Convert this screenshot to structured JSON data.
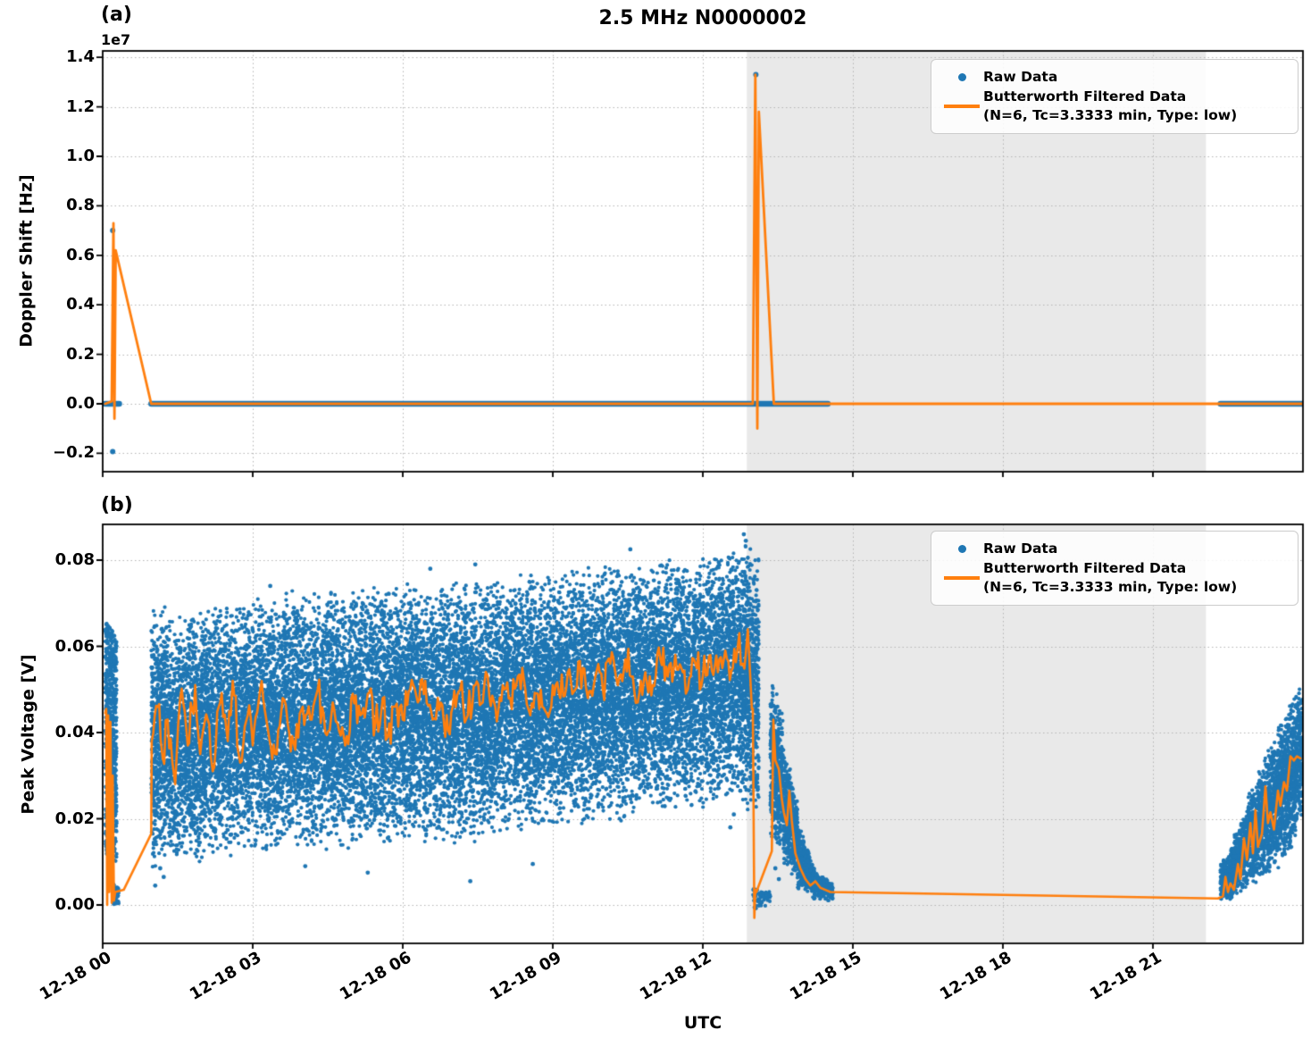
{
  "figure": {
    "title": "2.5 MHz N0000002",
    "xlabel": "UTC",
    "xticks": [
      {
        "h": 0,
        "label": "12-18 00"
      },
      {
        "h": 3,
        "label": "12-18 03"
      },
      {
        "h": 6,
        "label": "12-18 06"
      },
      {
        "h": 9,
        "label": "12-18 09"
      },
      {
        "h": 12,
        "label": "12-18 12"
      },
      {
        "h": 15,
        "label": "12-18 15"
      },
      {
        "h": 18,
        "label": "12-18 18"
      },
      {
        "h": 21,
        "label": "12-18 21"
      }
    ]
  },
  "colors": {
    "raw": "#1f77b4",
    "filtered": "#ff7f0e",
    "shade": "#e9e9e9",
    "grid": "#b5b5b5",
    "spine": "#000000",
    "legend_border": "#cccccc"
  },
  "legend": {
    "raw_label": "Raw Data",
    "filtered_label_line1": "Butterworth Filtered Data",
    "filtered_label_line2": "(N=6, Tc=3.3333 min, Type: low)"
  },
  "chart_data": [
    {
      "type": "scatter+line",
      "panel_label": "(a)",
      "ylabel": "Doppler Shift [Hz]",
      "y_offset_label": "1e7",
      "ylim_e7": [
        -0.274,
        1.426
      ],
      "xlim_hours": [
        0,
        24.0
      ],
      "grid": true,
      "legend_position": "upper right",
      "shaded_region_hours": [
        12.88,
        22.06
      ],
      "yticks": [
        {
          "v": -0.2,
          "label": "−0.2"
        },
        {
          "v": 0.0,
          "label": "0.0"
        },
        {
          "v": 0.2,
          "label": "0.2"
        },
        {
          "v": 0.4,
          "label": "0.4"
        },
        {
          "v": 0.6,
          "label": "0.6"
        },
        {
          "v": 0.8,
          "label": "0.8"
        },
        {
          "v": 1.0,
          "label": "1.0"
        },
        {
          "v": 1.2,
          "label": "1.2"
        },
        {
          "v": 1.4,
          "label": "1.4"
        }
      ],
      "raw_baseline_segments_hours": [
        [
          0.05,
          0.33
        ],
        [
          0.97,
          14.5
        ],
        [
          22.35,
          24.0
        ]
      ],
      "raw_outliers": [
        [
          0.2,
          0.7
        ],
        [
          0.2,
          -0.193
        ],
        [
          13.06,
          1.33
        ]
      ],
      "filtered_line": [
        [
          0.05,
          0.0
        ],
        [
          0.18,
          0.01
        ],
        [
          0.215,
          0.73
        ],
        [
          0.235,
          -0.06
        ],
        [
          0.26,
          0.62
        ],
        [
          0.97,
          0.0
        ],
        [
          13.0,
          0.0
        ],
        [
          13.05,
          1.33
        ],
        [
          13.09,
          -0.1
        ],
        [
          13.12,
          1.18
        ],
        [
          13.42,
          0.0
        ],
        [
          24.0,
          0.0
        ]
      ]
    },
    {
      "type": "scatter+line",
      "panel_label": "(b)",
      "ylabel": "Peak Voltage [V]",
      "ylim": [
        -0.0089,
        0.0881
      ],
      "xlim_hours": [
        0,
        24.0
      ],
      "grid": true,
      "legend_position": "upper right",
      "shaded_region_hours": [
        12.88,
        22.06
      ],
      "yticks": [
        {
          "v": 0.0,
          "label": "0.00"
        },
        {
          "v": 0.02,
          "label": "0.02"
        },
        {
          "v": 0.04,
          "label": "0.04"
        },
        {
          "v": 0.06,
          "label": "0.06"
        },
        {
          "v": 0.08,
          "label": "0.08"
        }
      ],
      "raw_scatter_segments": [
        {
          "t0": 0.05,
          "t1": 0.28,
          "lo0": 0.012,
          "hi0": 0.066,
          "lo1": 0.01,
          "hi1": 0.062,
          "n": 700,
          "dist": "uniform"
        },
        {
          "t0": 0.2,
          "t1": 0.32,
          "lo0": 0.0,
          "hi0": 0.005,
          "lo1": 0.0,
          "hi1": 0.004,
          "n": 55,
          "dist": "uniform"
        },
        {
          "t0": 0.97,
          "t1": 1.3,
          "lo0": 0.006,
          "hi0": 0.07,
          "lo1": 0.01,
          "hi1": 0.072,
          "n": 620,
          "dist": "mid"
        },
        {
          "t0": 1.3,
          "t1": 2.0,
          "lo0": 0.01,
          "hi0": 0.068,
          "lo1": 0.008,
          "hi1": 0.07,
          "n": 1200,
          "dist": "mid"
        },
        {
          "t0": 2.0,
          "t1": 3.0,
          "lo0": 0.01,
          "hi0": 0.07,
          "lo1": 0.012,
          "hi1": 0.071,
          "n": 1700,
          "dist": "mid"
        },
        {
          "t0": 3.0,
          "t1": 4.0,
          "lo0": 0.012,
          "hi0": 0.072,
          "lo1": 0.013,
          "hi1": 0.074,
          "n": 1700,
          "dist": "mid"
        },
        {
          "t0": 4.0,
          "t1": 5.0,
          "lo0": 0.012,
          "hi0": 0.073,
          "lo1": 0.012,
          "hi1": 0.073,
          "n": 1700,
          "dist": "mid"
        },
        {
          "t0": 5.0,
          "t1": 6.0,
          "lo0": 0.013,
          "hi0": 0.074,
          "lo1": 0.014,
          "hi1": 0.075,
          "n": 1700,
          "dist": "mid"
        },
        {
          "t0": 6.0,
          "t1": 7.0,
          "lo0": 0.014,
          "hi0": 0.075,
          "lo1": 0.014,
          "hi1": 0.076,
          "n": 1700,
          "dist": "mid"
        },
        {
          "t0": 7.0,
          "t1": 8.0,
          "lo0": 0.013,
          "hi0": 0.076,
          "lo1": 0.016,
          "hi1": 0.077,
          "n": 1700,
          "dist": "mid"
        },
        {
          "t0": 8.0,
          "t1": 9.0,
          "lo0": 0.016,
          "hi0": 0.077,
          "lo1": 0.017,
          "hi1": 0.078,
          "n": 1700,
          "dist": "mid"
        },
        {
          "t0": 9.0,
          "t1": 10.0,
          "lo0": 0.017,
          "hi0": 0.078,
          "lo1": 0.018,
          "hi1": 0.079,
          "n": 1700,
          "dist": "mid"
        },
        {
          "t0": 10.0,
          "t1": 11.0,
          "lo0": 0.018,
          "hi0": 0.08,
          "lo1": 0.02,
          "hi1": 0.081,
          "n": 1700,
          "dist": "mid"
        },
        {
          "t0": 11.0,
          "t1": 12.0,
          "lo0": 0.02,
          "hi0": 0.081,
          "lo1": 0.022,
          "hi1": 0.082,
          "n": 1700,
          "dist": "mid"
        },
        {
          "t0": 12.0,
          "t1": 12.7,
          "lo0": 0.022,
          "hi0": 0.082,
          "lo1": 0.024,
          "hi1": 0.084,
          "n": 1200,
          "dist": "mid"
        },
        {
          "t0": 12.7,
          "t1": 13.12,
          "lo0": 0.022,
          "hi0": 0.086,
          "lo1": 0.018,
          "hi1": 0.083,
          "n": 850,
          "dist": "mid"
        },
        {
          "t0": 13.0,
          "t1": 13.35,
          "lo0": -0.001,
          "hi0": 0.004,
          "lo1": 0.0,
          "hi1": 0.003,
          "n": 60,
          "dist": "uniform"
        },
        {
          "t0": 13.35,
          "t1": 13.6,
          "lo0": 0.014,
          "hi0": 0.055,
          "lo1": 0.012,
          "hi1": 0.044,
          "n": 450,
          "dist": "mid"
        },
        {
          "t0": 13.6,
          "t1": 13.9,
          "lo0": 0.009,
          "hi0": 0.04,
          "lo1": 0.005,
          "hi1": 0.024,
          "n": 450,
          "dist": "mid"
        },
        {
          "t0": 13.9,
          "t1": 14.2,
          "lo0": 0.003,
          "hi0": 0.02,
          "lo1": 0.002,
          "hi1": 0.01,
          "n": 380,
          "dist": "mid"
        },
        {
          "t0": 14.2,
          "t1": 14.6,
          "lo0": 0.001,
          "hi0": 0.009,
          "lo1": 0.001,
          "hi1": 0.005,
          "n": 320,
          "dist": "mid"
        },
        {
          "t0": 22.35,
          "t1": 22.6,
          "lo0": 0.001,
          "hi0": 0.01,
          "lo1": 0.001,
          "hi1": 0.014,
          "n": 320,
          "dist": "mid"
        },
        {
          "t0": 22.6,
          "t1": 22.9,
          "lo0": 0.001,
          "hi0": 0.016,
          "lo1": 0.003,
          "hi1": 0.024,
          "n": 420,
          "dist": "mid"
        },
        {
          "t0": 22.9,
          "t1": 23.2,
          "lo0": 0.003,
          "hi0": 0.026,
          "lo1": 0.006,
          "hi1": 0.034,
          "n": 480,
          "dist": "mid"
        },
        {
          "t0": 23.2,
          "t1": 23.5,
          "lo0": 0.005,
          "hi0": 0.034,
          "lo1": 0.009,
          "hi1": 0.04,
          "n": 520,
          "dist": "mid"
        },
        {
          "t0": 23.5,
          "t1": 23.75,
          "lo0": 0.008,
          "hi0": 0.042,
          "lo1": 0.012,
          "hi1": 0.047,
          "n": 480,
          "dist": "mid"
        },
        {
          "t0": 23.75,
          "t1": 24.0,
          "lo0": 0.012,
          "hi0": 0.048,
          "lo1": 0.019,
          "hi1": 0.053,
          "n": 480,
          "dist": "mid"
        }
      ],
      "raw_outliers": [
        [
          1.05,
          0.0045
        ],
        [
          1.15,
          0.0085
        ],
        [
          1.22,
          0.0065
        ],
        [
          4.05,
          0.009
        ],
        [
          5.3,
          0.0075
        ],
        [
          7.35,
          0.0055
        ],
        [
          8.6,
          0.0095
        ],
        [
          12.55,
          0.018
        ],
        [
          12.62,
          0.021
        ],
        [
          12.75,
          0.0265
        ],
        [
          3.35,
          0.074
        ],
        [
          6.55,
          0.078
        ],
        [
          7.45,
          0.079
        ],
        [
          10.55,
          0.0825
        ],
        [
          12.82,
          0.086
        ],
        [
          12.86,
          0.0845
        ],
        [
          13.45,
          0.0085
        ],
        [
          13.52,
          0.006
        ]
      ],
      "filtered_pre": [
        [
          0.05,
          0.0445
        ],
        [
          0.07,
          0.0455
        ],
        [
          0.09,
          0.0
        ],
        [
          0.11,
          0.044
        ],
        [
          0.13,
          0.003
        ],
        [
          0.155,
          0.0425
        ],
        [
          0.18,
          0.0005
        ],
        [
          0.2,
          0.03
        ],
        [
          0.225,
          0.001
        ],
        [
          0.25,
          0.003
        ],
        [
          0.42,
          0.0035
        ],
        [
          0.97,
          0.0165
        ]
      ],
      "filtered_main_anchors": [
        [
          0.98,
          0.038
        ],
        [
          1.1,
          0.046
        ],
        [
          1.2,
          0.034
        ],
        [
          1.3,
          0.043
        ],
        [
          1.45,
          0.028
        ],
        [
          1.55,
          0.048
        ],
        [
          1.7,
          0.037
        ],
        [
          1.85,
          0.051
        ],
        [
          1.95,
          0.035
        ],
        [
          2.1,
          0.043
        ],
        [
          2.2,
          0.031
        ],
        [
          2.35,
          0.047
        ],
        [
          2.5,
          0.038
        ],
        [
          2.6,
          0.052
        ],
        [
          2.75,
          0.033
        ],
        [
          2.9,
          0.044
        ],
        [
          3.0,
          0.037
        ],
        [
          3.15,
          0.05
        ],
        [
          3.3,
          0.041
        ],
        [
          3.45,
          0.035
        ],
        [
          3.6,
          0.048
        ],
        [
          3.7,
          0.042
        ],
        [
          3.85,
          0.036
        ],
        [
          4.0,
          0.046
        ],
        [
          4.15,
          0.043
        ],
        [
          4.3,
          0.05
        ],
        [
          4.45,
          0.04
        ],
        [
          4.6,
          0.047
        ],
        [
          4.7,
          0.042
        ],
        [
          4.85,
          0.037
        ],
        [
          5.0,
          0.049
        ],
        [
          5.15,
          0.044
        ],
        [
          5.3,
          0.049
        ],
        [
          5.45,
          0.042
        ],
        [
          5.6,
          0.048
        ],
        [
          5.7,
          0.039
        ],
        [
          5.85,
          0.046
        ],
        [
          6.0,
          0.043
        ],
        [
          6.15,
          0.05
        ],
        [
          6.3,
          0.047
        ],
        [
          6.45,
          0.052
        ],
        [
          6.6,
          0.043
        ],
        [
          6.7,
          0.048
        ],
        [
          6.85,
          0.039
        ],
        [
          7.0,
          0.046
        ],
        [
          7.15,
          0.05
        ],
        [
          7.3,
          0.044
        ],
        [
          7.45,
          0.051
        ],
        [
          7.6,
          0.047
        ],
        [
          7.7,
          0.053
        ],
        [
          7.85,
          0.046
        ],
        [
          8.0,
          0.051
        ],
        [
          8.15,
          0.048
        ],
        [
          8.3,
          0.053
        ],
        [
          8.45,
          0.05
        ],
        [
          8.55,
          0.044
        ],
        [
          8.7,
          0.049
        ],
        [
          8.85,
          0.045
        ],
        [
          9.0,
          0.051
        ],
        [
          9.15,
          0.048
        ],
        [
          9.3,
          0.054
        ],
        [
          9.45,
          0.05
        ],
        [
          9.6,
          0.055
        ],
        [
          9.7,
          0.048
        ],
        [
          9.85,
          0.053
        ],
        [
          10.0,
          0.05
        ],
        [
          10.15,
          0.056
        ],
        [
          10.3,
          0.051
        ],
        [
          10.45,
          0.057
        ],
        [
          10.6,
          0.053
        ],
        [
          10.7,
          0.047
        ],
        [
          10.85,
          0.054
        ],
        [
          11.0,
          0.051
        ],
        [
          11.15,
          0.057
        ],
        [
          11.3,
          0.053
        ],
        [
          11.45,
          0.058
        ],
        [
          11.6,
          0.054
        ],
        [
          11.7,
          0.05
        ],
        [
          11.85,
          0.056
        ],
        [
          12.0,
          0.053
        ],
        [
          12.15,
          0.058
        ],
        [
          12.3,
          0.054
        ],
        [
          12.45,
          0.059
        ],
        [
          12.6,
          0.055
        ],
        [
          12.7,
          0.06
        ],
        [
          12.8,
          0.056
        ],
        [
          12.9,
          0.064
        ],
        [
          12.98,
          0.0455
        ]
      ],
      "filtered_jitter": {
        "amp": 0.0045,
        "step_h": 0.03
      },
      "filtered_post": [
        [
          13.0,
          0.0455
        ],
        [
          13.03,
          -0.003
        ],
        [
          13.05,
          0.0035
        ],
        [
          13.07,
          0.003
        ],
        [
          13.38,
          0.0125
        ],
        [
          13.41,
          0.043
        ],
        [
          13.45,
          0.0335
        ],
        [
          13.52,
          0.0315
        ],
        [
          13.58,
          0.0245
        ],
        [
          13.62,
          0.0215
        ],
        [
          13.68,
          0.0185
        ],
        [
          13.73,
          0.0265
        ],
        [
          13.78,
          0.0195
        ],
        [
          13.85,
          0.012
        ],
        [
          13.95,
          0.0085
        ],
        [
          14.05,
          0.006
        ],
        [
          14.15,
          0.0045
        ],
        [
          14.25,
          0.0055
        ],
        [
          14.35,
          0.004
        ],
        [
          14.45,
          0.0035
        ],
        [
          14.55,
          0.003
        ],
        [
          22.3,
          0.0015
        ]
      ],
      "filtered_rise": [
        [
          22.4,
          0.002
        ],
        [
          22.45,
          0.0065
        ],
        [
          22.5,
          0.003
        ],
        [
          22.55,
          0.005
        ],
        [
          22.62,
          0.0035
        ],
        [
          22.7,
          0.0095
        ],
        [
          22.75,
          0.006
        ],
        [
          22.82,
          0.0155
        ],
        [
          22.88,
          0.0105
        ],
        [
          22.95,
          0.019
        ],
        [
          23.0,
          0.012
        ],
        [
          23.05,
          0.022
        ],
        [
          23.1,
          0.0135
        ],
        [
          23.18,
          0.0165
        ],
        [
          23.25,
          0.0275
        ],
        [
          23.3,
          0.019
        ],
        [
          23.35,
          0.0215
        ],
        [
          23.42,
          0.0175
        ],
        [
          23.5,
          0.0265
        ],
        [
          23.55,
          0.023
        ],
        [
          23.62,
          0.0285
        ],
        [
          23.68,
          0.0265
        ],
        [
          23.75,
          0.0345
        ],
        [
          23.82,
          0.0335
        ],
        [
          23.88,
          0.0345
        ],
        [
          23.95,
          0.034
        ]
      ]
    }
  ]
}
